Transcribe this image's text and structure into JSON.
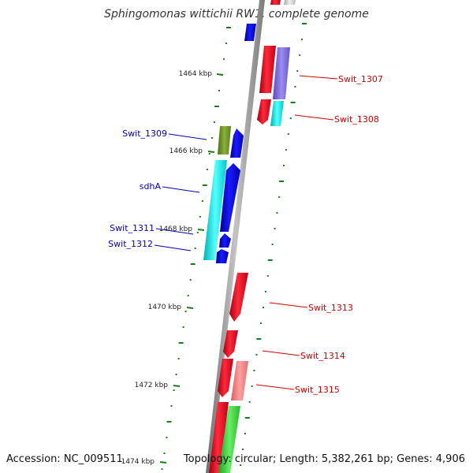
{
  "title": "Sphingomonas wittichii RW1, complete genome",
  "accession": "Accession: NC_009511",
  "topology": "Topology: circular; Length: 5,382,261 bp; Genes: 4,906",
  "kbp_labels": [
    "1464 kbp",
    "1466 kbp",
    "1468 kbp",
    "1470 kbp",
    "1472 kbp",
    "1474 kbp"
  ],
  "genes": [
    {
      "name": "Swit_1307",
      "strand": "forward",
      "color": "#e8001a"
    },
    {
      "name": "Swit_1308",
      "strand": "forward",
      "color": "#e8001a"
    },
    {
      "name": "Swit_1309",
      "strand": "reverse",
      "color": "#0000ee"
    },
    {
      "name": "sdhA",
      "strand": "reverse",
      "color": "#0000ee"
    },
    {
      "name": "Swit_1311",
      "strand": "reverse",
      "color": "#0000ee"
    },
    {
      "name": "Swit_1312",
      "strand": "reverse",
      "color": "#0000ee"
    },
    {
      "name": "Swit_1313",
      "strand": "forward",
      "color": "#e8001a"
    },
    {
      "name": "Swit_1314",
      "strand": "forward",
      "color": "#e8001a"
    },
    {
      "name": "Swit_1315",
      "strand": "forward",
      "color": "#e8001a"
    }
  ],
  "colors": {
    "backbone": "#8c8c8c",
    "tick": "#1f7a1f",
    "forward": "#e8001a",
    "reverse": "#0000ee",
    "forward_label": "#cc0000",
    "reverse_label": "#0000bb",
    "cds_purple": "#7b68d8",
    "cds_cyan": "#00e5e5",
    "cds_olive": "#6b8e23",
    "cds_pink": "#f08080",
    "cds_green": "#33cc33"
  }
}
